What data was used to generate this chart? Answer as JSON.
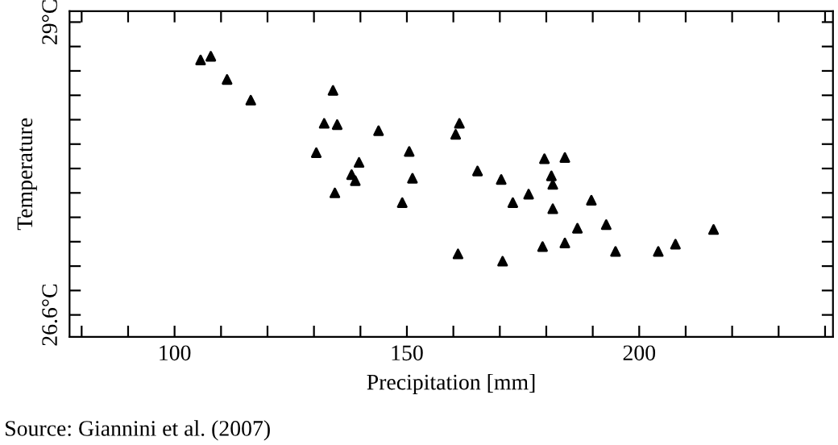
{
  "chart_data": {
    "type": "scatter",
    "xlabel": "Precipitation [mm]",
    "ylabel": "Temperature",
    "annotations": [
      "Source: Giannini et al. (2007)"
    ],
    "x": [
      105.6,
      107.8,
      111.3,
      116.4,
      134.1,
      132.2,
      135.0,
      143.9,
      130.5,
      139.7,
      138.1,
      138.9,
      134.5,
      149.0,
      150.5,
      151.2,
      160.5,
      161.3,
      165.2,
      170.3,
      172.8,
      176.2,
      179.6,
      184.0,
      181.1,
      181.4,
      181.4,
      189.7,
      192.9,
      186.7,
      184.0,
      179.2,
      194.9,
      204.1,
      207.8,
      216.0,
      161.0,
      170.6
    ],
    "series": [
      {
        "color": "#000000",
        "values": [
          28.69,
          28.72,
          28.53,
          28.36,
          28.44,
          28.17,
          28.16,
          28.11,
          27.93,
          27.85,
          27.75,
          27.7,
          27.6,
          27.52,
          27.94,
          27.72,
          28.08,
          28.17,
          27.78,
          27.71,
          27.52,
          27.59,
          27.88,
          27.89,
          27.74,
          27.67,
          27.47,
          27.54,
          27.34,
          27.31,
          27.19,
          27.16,
          27.12,
          27.12,
          27.18,
          27.3,
          27.1,
          27.04
        ]
      }
    ],
    "marker": "triangle",
    "xlim": [
      77.4,
      241.7
    ],
    "xticks": [
      {
        "value": 80,
        "label": null
      },
      {
        "value": 90,
        "label": null
      },
      100,
      {
        "value": 110,
        "label": null
      },
      {
        "value": 120,
        "label": null
      },
      {
        "value": 130,
        "label": null
      },
      {
        "value": 140,
        "label": null
      },
      150,
      {
        "value": 160,
        "label": null
      },
      {
        "value": 170,
        "label": null
      },
      {
        "value": 180,
        "label": null
      },
      {
        "value": 190,
        "label": null
      },
      200,
      {
        "value": 210,
        "label": null
      },
      {
        "value": 220,
        "label": null
      },
      {
        "value": 230,
        "label": null
      },
      {
        "value": 240,
        "label": null
      }
    ],
    "ylim": [
      26.42,
      29.09
    ],
    "yticks": [
      {
        "value": 26.6,
        "label": "26.6°C"
      },
      {
        "value": 26.8,
        "label": null
      },
      {
        "value": 27.0,
        "label": null
      },
      {
        "value": 27.2,
        "label": null
      },
      {
        "value": 27.4,
        "label": null
      },
      {
        "value": 27.6,
        "label": null
      },
      {
        "value": 27.8,
        "label": null
      },
      {
        "value": 28.0,
        "label": null
      },
      {
        "value": 28.2,
        "label": null
      },
      {
        "value": 28.4,
        "label": null
      },
      {
        "value": 28.6,
        "label": null
      },
      {
        "value": 28.8,
        "label": null
      },
      {
        "value": 29.0,
        "label": "29°C"
      }
    ],
    "tick_labels": "xy"
  }
}
